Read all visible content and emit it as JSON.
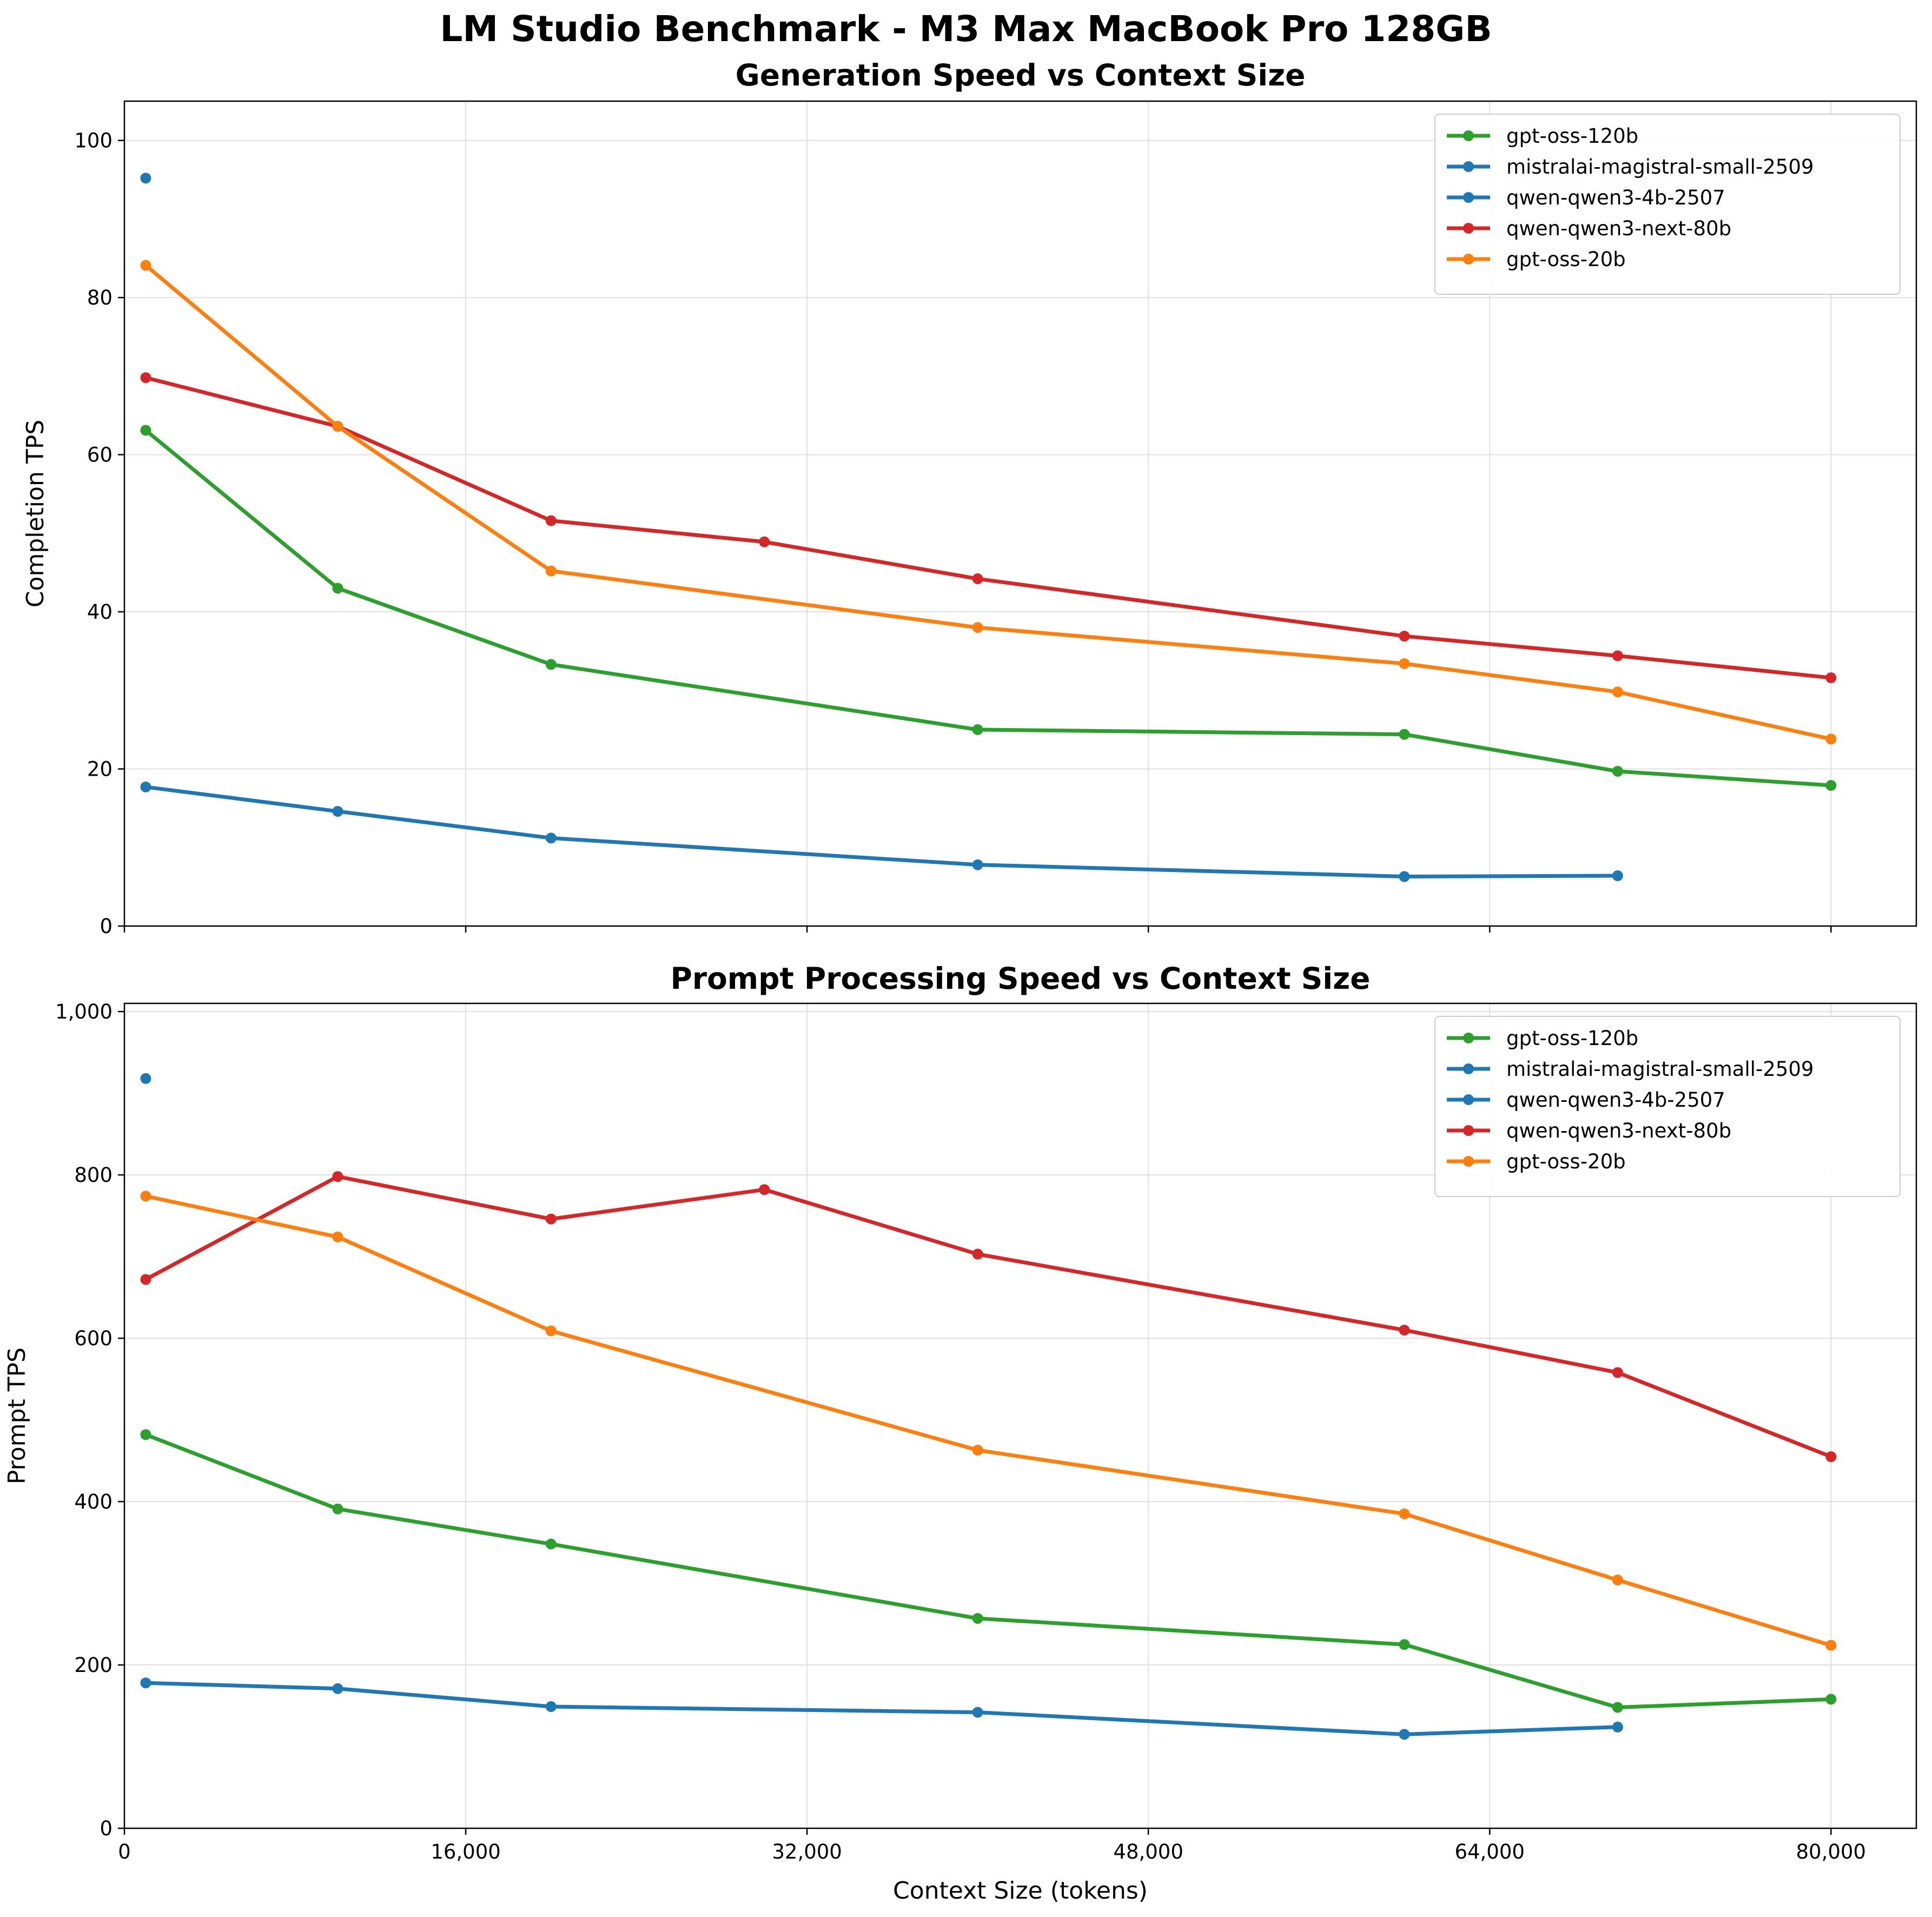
{
  "suptitle": "LM Studio Benchmark - M3 Max MacBook Pro 128GB",
  "chart_data": [
    {
      "type": "line",
      "title": "Generation Speed vs Context Size",
      "xlabel": "",
      "ylabel": "Completion TPS",
      "xlim": [
        0,
        84000
      ],
      "ylim": [
        0,
        105
      ],
      "xticks": [
        0,
        16000,
        32000,
        48000,
        64000,
        80000
      ],
      "xtick_labels_visible": false,
      "yticks": [
        0,
        20,
        40,
        60,
        80,
        100
      ],
      "grid": true,
      "legend_position": "top-right",
      "series": [
        {
          "name": "gpt-oss-120b",
          "color": "#2ca02c",
          "x": [
            1000,
            10000,
            20000,
            40000,
            60000,
            70000,
            80000
          ],
          "y": [
            63.1,
            43.0,
            33.3,
            25.0,
            24.4,
            19.7,
            17.9
          ]
        },
        {
          "name": "mistralai-magistral-small-2509",
          "color": "#1f77b4",
          "x": [
            1000,
            10000,
            20000,
            40000,
            60000,
            70000
          ],
          "y": [
            17.7,
            14.6,
            11.2,
            7.8,
            6.3,
            6.4
          ]
        },
        {
          "name": "qwen-qwen3-4b-2507",
          "color": "#1f77b4",
          "x": [
            1000
          ],
          "y": [
            95.2
          ]
        },
        {
          "name": "qwen-qwen3-next-80b",
          "color": "#d62728",
          "x": [
            1000,
            10000,
            20000,
            30000,
            40000,
            60000,
            70000,
            80000
          ],
          "y": [
            69.8,
            63.6,
            51.6,
            48.9,
            44.2,
            36.9,
            34.4,
            31.6
          ]
        },
        {
          "name": "gpt-oss-20b",
          "color": "#ff7f0e",
          "x": [
            1000,
            10000,
            20000,
            40000,
            60000,
            70000,
            80000
          ],
          "y": [
            84.1,
            63.6,
            45.2,
            38.0,
            33.4,
            29.8,
            23.8
          ]
        }
      ]
    },
    {
      "type": "line",
      "title": "Prompt Processing Speed vs Context Size",
      "xlabel": "Context Size (tokens)",
      "ylabel": "Prompt TPS",
      "xlim": [
        0,
        84000
      ],
      "ylim": [
        0,
        1010
      ],
      "xticks": [
        0,
        16000,
        32000,
        48000,
        64000,
        80000
      ],
      "xtick_labels": [
        "0",
        "16,000",
        "32,000",
        "48,000",
        "64,000",
        "80,000"
      ],
      "yticks": [
        0,
        200,
        400,
        600,
        800,
        1000
      ],
      "grid": true,
      "legend_position": "top-right",
      "series": [
        {
          "name": "gpt-oss-120b",
          "color": "#2ca02c",
          "x": [
            1000,
            10000,
            20000,
            40000,
            60000,
            70000,
            80000
          ],
          "y": [
            482,
            391,
            348,
            257,
            225,
            148,
            158
          ]
        },
        {
          "name": "mistralai-magistral-small-2509",
          "color": "#1f77b4",
          "x": [
            1000,
            10000,
            20000,
            40000,
            60000,
            70000
          ],
          "y": [
            178,
            171,
            149,
            142,
            115,
            124
          ]
        },
        {
          "name": "qwen-qwen3-4b-2507",
          "color": "#1f77b4",
          "x": [
            1000
          ],
          "y": [
            918
          ]
        },
        {
          "name": "qwen-qwen3-next-80b",
          "color": "#d62728",
          "x": [
            1000,
            10000,
            20000,
            30000,
            40000,
            60000,
            70000,
            80000
          ],
          "y": [
            672,
            798,
            746,
            782,
            703,
            610,
            558,
            455
          ]
        },
        {
          "name": "gpt-oss-20b",
          "color": "#ff7f0e",
          "x": [
            1000,
            10000,
            20000,
            40000,
            60000,
            70000,
            80000
          ],
          "y": [
            774,
            724,
            609,
            463,
            385,
            304,
            224
          ]
        }
      ]
    }
  ]
}
